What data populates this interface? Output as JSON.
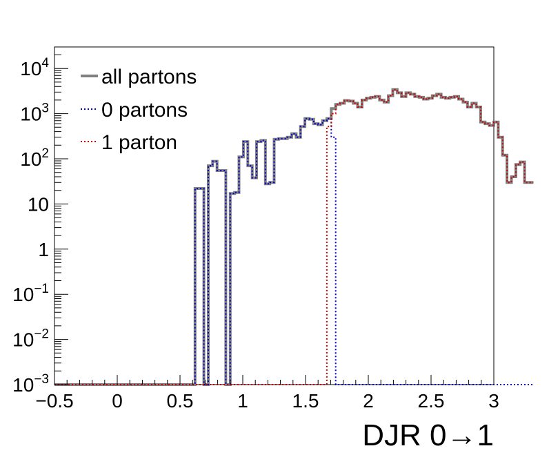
{
  "chart_data": {
    "type": "line",
    "style": "step-histogram",
    "xlabel": "DJR 0→1",
    "ylabel": "",
    "xlim": [
      -0.5,
      3.0
    ],
    "ylim": [
      0.001,
      30000
    ],
    "yscale": "log",
    "x_ticks": [
      "−0.5",
      "0",
      "0.5",
      "1",
      "1.5",
      "2",
      "2.5",
      "3"
    ],
    "y_ticks": [
      {
        "base": "10",
        "exp": "−3"
      },
      {
        "base": "10",
        "exp": "−2"
      },
      {
        "base": "10",
        "exp": "−1"
      },
      {
        "base": "1",
        "exp": ""
      },
      {
        "base": "10",
        "exp": ""
      },
      {
        "base": "10",
        "exp": "2"
      },
      {
        "base": "10",
        "exp": "3"
      },
      {
        "base": "10",
        "exp": "4"
      }
    ],
    "legend_position": "top-left",
    "grid": false,
    "bin_width": 0.035,
    "x_start": -0.5,
    "series": [
      {
        "name": "all partons",
        "color": "#808080",
        "values": [
          0,
          0,
          0,
          0,
          0,
          0,
          0,
          0,
          0,
          0,
          0,
          0,
          0,
          0,
          0,
          0,
          0,
          0,
          0,
          0,
          0,
          0,
          0,
          0,
          0,
          0,
          0,
          0,
          0,
          0,
          0,
          0,
          22,
          22,
          0,
          70,
          88,
          55,
          55,
          0,
          17,
          18,
          110,
          240,
          70,
          38,
          240,
          255,
          28,
          30,
          270,
          280,
          280,
          300,
          360,
          300,
          520,
          780,
          750,
          600,
          570,
          700,
          780,
          1300,
          1600,
          1700,
          1950,
          1900,
          1700,
          1400,
          2000,
          2200,
          2300,
          2400,
          2000,
          1800,
          2500,
          3400,
          2900,
          2400,
          2900,
          2700,
          2400,
          2300,
          2100,
          2200,
          2500,
          2700,
          2300,
          2200,
          2300,
          2400,
          2100,
          1800,
          1400,
          1700,
          1400,
          650,
          600,
          550,
          650,
          300,
          120,
          30,
          40,
          75,
          85,
          30,
          30
        ]
      },
      {
        "name": "0 partons",
        "color": "#0000cc",
        "values": [
          0,
          0,
          0,
          0,
          0,
          0,
          0,
          0,
          0,
          0,
          0,
          0,
          0,
          0,
          0,
          0,
          0,
          0,
          0,
          0,
          0,
          0,
          0,
          0,
          0,
          0,
          0,
          0,
          0,
          0,
          0,
          0,
          22,
          22,
          0,
          70,
          88,
          55,
          55,
          0,
          17,
          18,
          110,
          240,
          70,
          38,
          240,
          255,
          28,
          30,
          270,
          280,
          280,
          300,
          360,
          300,
          520,
          780,
          750,
          600,
          570,
          700,
          780,
          300,
          0,
          0,
          0,
          0,
          0,
          0,
          0,
          0,
          0,
          0,
          0,
          0,
          0,
          0,
          0,
          0,
          0,
          0,
          0,
          0,
          0,
          0,
          0,
          0,
          0,
          0,
          0,
          0,
          0,
          0,
          0,
          0,
          0,
          0,
          0,
          0,
          0,
          0,
          0,
          0,
          0,
          0,
          0,
          0,
          0
        ]
      },
      {
        "name": "1 parton",
        "color": "#cc0000",
        "values": [
          0,
          0,
          0,
          0,
          0,
          0,
          0,
          0,
          0,
          0,
          0,
          0,
          0,
          0,
          0,
          0,
          0,
          0,
          0,
          0,
          0,
          0,
          0,
          0,
          0,
          0,
          0,
          0,
          0,
          0,
          0,
          0,
          0,
          0,
          0,
          0,
          0,
          0,
          0,
          0,
          0,
          0,
          0,
          0,
          0,
          0,
          0,
          0,
          0,
          0,
          0,
          0,
          0,
          0,
          0,
          0,
          0,
          0,
          0,
          0,
          0,
          0,
          520,
          1000,
          1600,
          1700,
          1950,
          1900,
          1700,
          1400,
          2000,
          2200,
          2300,
          2400,
          2000,
          1800,
          2500,
          3400,
          2900,
          2400,
          2900,
          2700,
          2400,
          2300,
          2100,
          2200,
          2500,
          2700,
          2300,
          2200,
          2300,
          2400,
          2100,
          1800,
          1400,
          1700,
          1400,
          650,
          600,
          550,
          650,
          300,
          120,
          30,
          40,
          75,
          85,
          30,
          30
        ]
      }
    ]
  }
}
